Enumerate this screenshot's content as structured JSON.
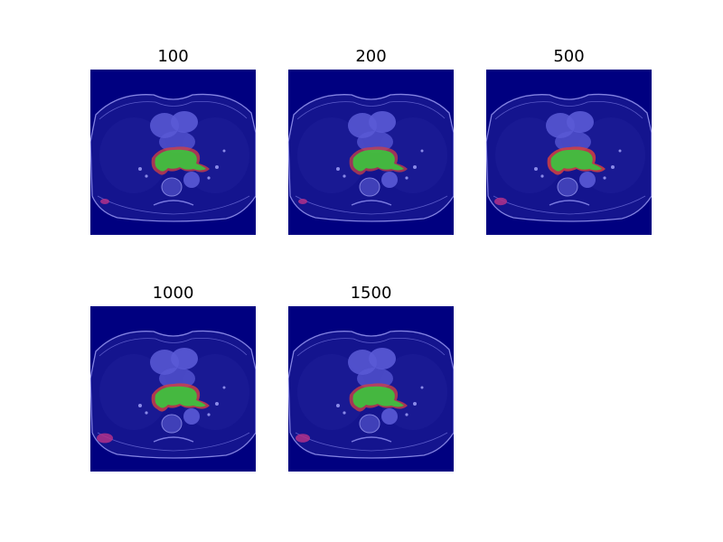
{
  "figure": {
    "panels": [
      {
        "title": "100"
      },
      {
        "title": "200"
      },
      {
        "title": "500"
      },
      {
        "title": "1000"
      },
      {
        "title": "1500"
      }
    ]
  },
  "colors": {
    "background_navy": "#000080",
    "tissue": "#5a5ad6",
    "segmentation_green": "#3fbf3f",
    "segmentation_red": "#d64040",
    "artifact_magenta": "#b0308a"
  }
}
